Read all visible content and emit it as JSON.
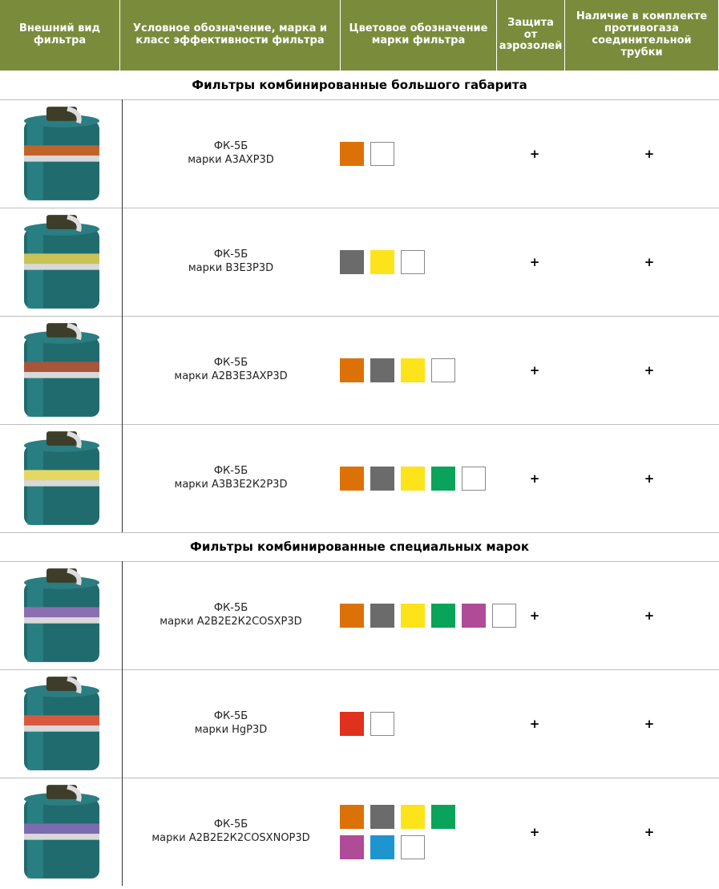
{
  "header": [
    "Внешний вид фильтра",
    "Условное обозначение, марка и класс эффективности фильтра",
    "Цветовое обозначение марки фильтра",
    "Защита от аэрозолей",
    "Наличие в комплекте противогаза соединительной трубки"
  ],
  "sections": [
    {
      "title": "Фильтры комбинированные большого габарита",
      "rows": [
        {
          "name": "ФК-5Б",
          "mark": "марки А3АХР3D",
          "colors": [
            [
              "#dc7207",
              "#ffffff"
            ]
          ],
          "aerosol": "+",
          "tube": "+"
        },
        {
          "name": "ФК-5Б",
          "mark": "марки В3Е3Р3D",
          "colors": [
            [
              "#6b6b6b",
              "#fde31a",
              "#ffffff"
            ]
          ],
          "aerosol": "+",
          "tube": "+"
        },
        {
          "name": "ФК-5Б",
          "mark": "марки А2В3Е3АХР3D",
          "colors": [
            [
              "#dc7207",
              "#6b6b6b",
              "#fde31a",
              "#ffffff"
            ]
          ],
          "aerosol": "+",
          "tube": "+"
        },
        {
          "name": "ФК-5Б",
          "mark": "марки А3В3Е2К2Р3D",
          "colors": [
            [
              "#dc7207",
              "#6b6b6b",
              "#fde31a",
              "#0aa35a",
              "#ffffff"
            ]
          ],
          "aerosol": "+",
          "tube": "+"
        }
      ]
    },
    {
      "title": "Фильтры комбинированные специальных марок",
      "rows": [
        {
          "name": "ФК-5Б",
          "mark": "марки А2В2Е2К2COSХР3D",
          "colors": [
            [
              "#dc7207",
              "#6b6b6b",
              "#fde31a",
              "#0aa35a",
              "#b04b97",
              "#ffffff"
            ]
          ],
          "aerosol": "+",
          "tube": "+"
        },
        {
          "name": "ФК-5Б",
          "mark": "марки HgP3D",
          "colors": [
            [
              "#e0301e",
              "#ffffff"
            ]
          ],
          "aerosol": "+",
          "tube": "+"
        },
        {
          "name": "ФК-5Б",
          "mark": "марки А2В2Е2К2COSХNOР3D",
          "colors": [
            [
              "#dc7207",
              "#6b6b6b",
              "#fde31a",
              "#0aa35a"
            ],
            [
              "#b04b97",
              "#1f95d0",
              "#ffffff"
            ]
          ],
          "aerosol": "+",
          "tube": "+"
        }
      ]
    }
  ]
}
